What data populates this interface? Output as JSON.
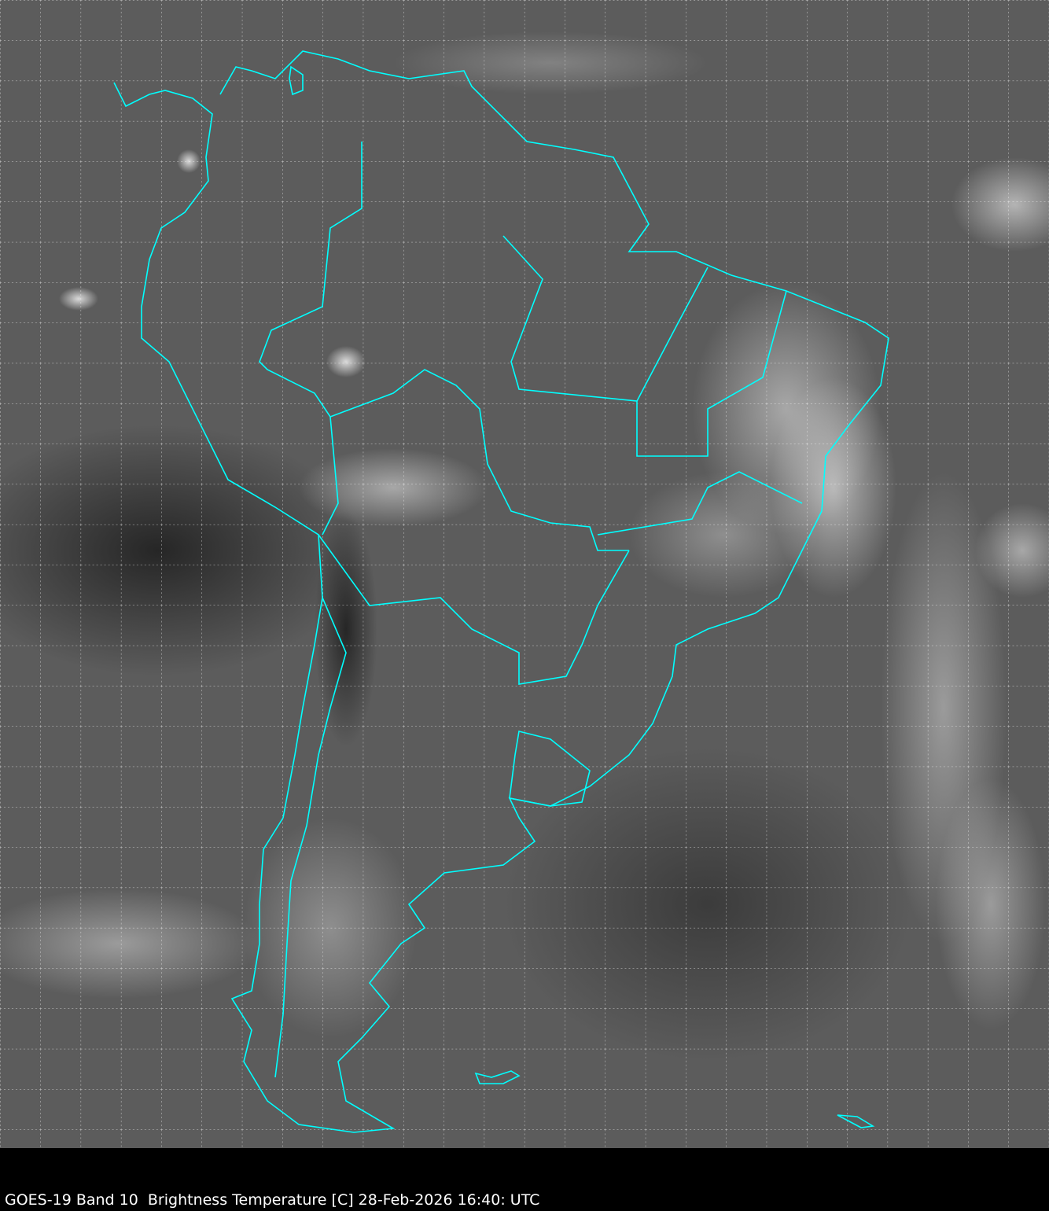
{
  "caption": "GOES-19 Band 10  Brightness Temperature [C] 28-Feb-2026 16:40: UTC",
  "colors": {
    "background": "#5a5a5a",
    "coastline": "#00ffff",
    "grid": "#ffffff",
    "caption_bar": "#000000"
  },
  "map": {
    "region": "South America",
    "style": "grayscale infrared with cyan political boundaries and dotted lat/lon grid"
  }
}
